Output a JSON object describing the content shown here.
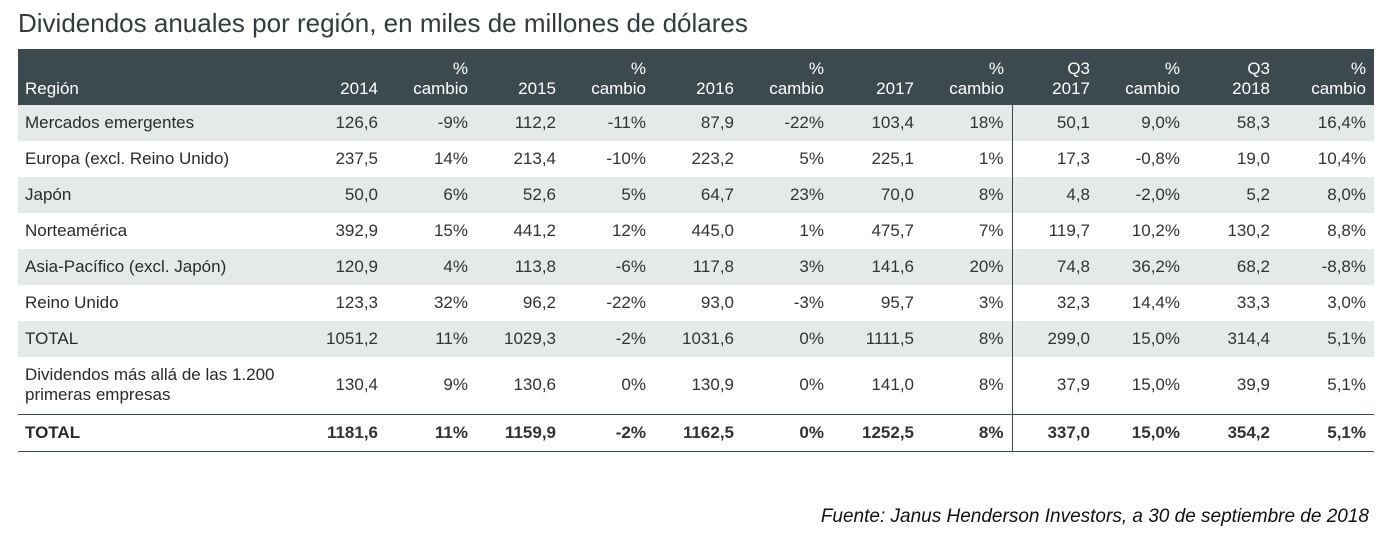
{
  "chart_data": {
    "type": "table",
    "title": "Dividendos anuales por región, en miles de millones de dólares",
    "columns": [
      {
        "key": "region",
        "lines": [
          "Región"
        ]
      },
      {
        "key": "y2014",
        "lines": [
          "2014"
        ]
      },
      {
        "key": "c2014",
        "lines": [
          "%",
          "cambio"
        ]
      },
      {
        "key": "y2015",
        "lines": [
          "2015"
        ]
      },
      {
        "key": "c2015",
        "lines": [
          "%",
          "cambio"
        ]
      },
      {
        "key": "y2016",
        "lines": [
          "2016"
        ]
      },
      {
        "key": "c2016",
        "lines": [
          "%",
          "cambio"
        ]
      },
      {
        "key": "y2017",
        "lines": [
          "2017"
        ]
      },
      {
        "key": "c2017",
        "lines": [
          "%",
          "cambio"
        ]
      },
      {
        "key": "q2017",
        "lines": [
          "Q3",
          "2017"
        ]
      },
      {
        "key": "cq2017",
        "lines": [
          "%",
          "cambio"
        ]
      },
      {
        "key": "q2018",
        "lines": [
          "Q3",
          "2018"
        ]
      },
      {
        "key": "cq2018",
        "lines": [
          "%",
          "cambio"
        ]
      }
    ],
    "rows": [
      {
        "cells": [
          "Mercados emergentes",
          "126,6",
          "-9%",
          "112,2",
          "-11%",
          "87,9",
          "-22%",
          "103,4",
          "18%",
          "50,1",
          "9,0%",
          "58,3",
          "16,4%"
        ]
      },
      {
        "cells": [
          "Europa (excl. Reino Unido)",
          "237,5",
          "14%",
          "213,4",
          "-10%",
          "223,2",
          "5%",
          "225,1",
          "1%",
          "17,3",
          "-0,8%",
          "19,0",
          "10,4%"
        ]
      },
      {
        "cells": [
          "Japón",
          "50,0",
          "6%",
          "52,6",
          "5%",
          "64,7",
          "23%",
          "70,0",
          "8%",
          "4,8",
          "-2,0%",
          "5,2",
          "8,0%"
        ]
      },
      {
        "cells": [
          "Norteamérica",
          "392,9",
          "15%",
          "441,2",
          "12%",
          "445,0",
          "1%",
          "475,7",
          "7%",
          "119,7",
          "10,2%",
          "130,2",
          "8,8%"
        ]
      },
      {
        "cells": [
          "Asia-Pacífico (excl. Japón)",
          "120,9",
          "4%",
          "113,8",
          "-6%",
          "117,8",
          "3%",
          "141,6",
          "20%",
          "74,8",
          "36,2%",
          "68,2",
          "-8,8%"
        ]
      },
      {
        "cells": [
          "Reino Unido",
          "123,3",
          "32%",
          "96,2",
          "-22%",
          "93,0",
          "-3%",
          "95,7",
          "3%",
          "32,3",
          "14,4%",
          "33,3",
          "3,0%"
        ]
      },
      {
        "cells": [
          "TOTAL",
          "1051,2",
          "11%",
          "1029,3",
          "-2%",
          "1031,6",
          "0%",
          "1111,5",
          "8%",
          "299,0",
          "15,0%",
          "314,4",
          "5,1%"
        ]
      },
      {
        "cells": [
          "Dividendos más allá de las 1.200 primeras empresas",
          "130,4",
          "9%",
          "130,6",
          "0%",
          "130,9",
          "0%",
          "141,0",
          "8%",
          "37,9",
          "15,0%",
          "39,9",
          "5,1%"
        ]
      },
      {
        "cells": [
          "TOTAL",
          "1181,6",
          "11%",
          "1159,9",
          "-2%",
          "1162,5",
          "0%",
          "1252,5",
          "8%",
          "337,0",
          "15,0%",
          "354,2",
          "5,1%"
        ]
      }
    ],
    "source": "Fuente: Janus Henderson Investors, a 30 de septiembre de 2018"
  },
  "colors": {
    "header_bg": "#3c4a4f",
    "row_shade": "#e6e9ea"
  }
}
